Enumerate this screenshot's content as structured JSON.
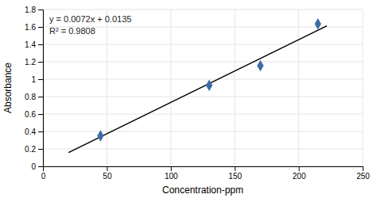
{
  "chart_data": {
    "type": "scatter",
    "xlabel": "Concentration-ppm",
    "ylabel": "Absorbance",
    "xlim": [
      0,
      250
    ],
    "ylim": [
      0,
      1.8
    ],
    "xticks": [
      0,
      50,
      100,
      150,
      200,
      250
    ],
    "yticks": [
      0,
      0.2,
      0.4,
      0.6,
      0.8,
      1,
      1.2,
      1.4,
      1.6,
      1.8
    ],
    "grid": true,
    "annotations": [
      "y = 0.0072x + 0.0135",
      "R² = 0.9808"
    ],
    "series": [
      {
        "type": "scatter",
        "x": [
          45,
          130,
          170,
          215
        ],
        "values": [
          0.35,
          0.93,
          1.155,
          1.635
        ],
        "color": "#3B6CA8",
        "marker": "diamond"
      },
      {
        "type": "line",
        "x": [
          20,
          222
        ],
        "values": [
          0.1575,
          1.6119
        ],
        "color": "black",
        "line_style": "solid"
      }
    ]
  }
}
